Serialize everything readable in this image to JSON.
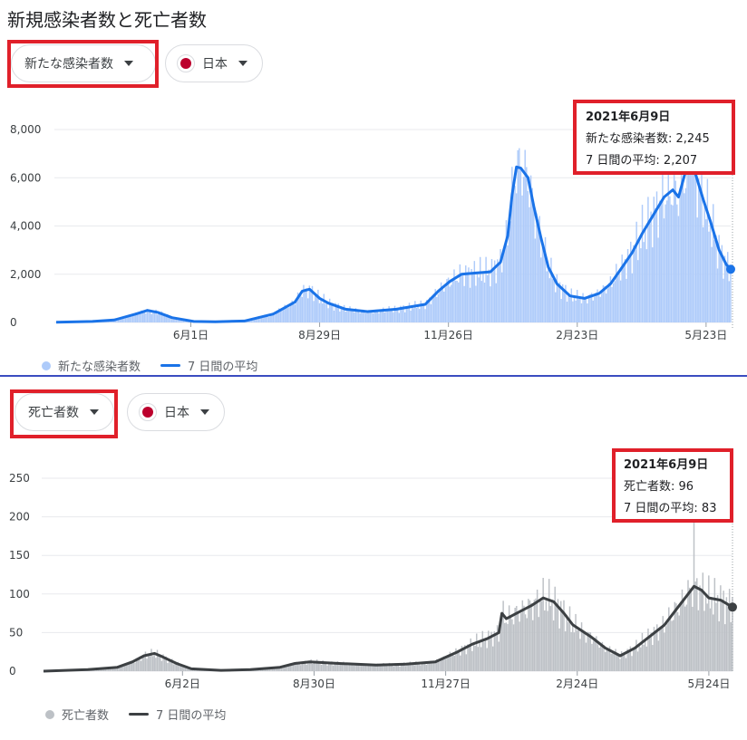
{
  "page_title": "新規感染者数と死亡者数",
  "charts": [
    {
      "metric_select": "新たな感染者数",
      "region_select": "日本",
      "tooltip": {
        "date": "2021年6月9日",
        "daily_label": "新たな感染者数",
        "daily_value": "2,245",
        "avg_label": "7 日間の平均",
        "avg_value": "2,207"
      },
      "legend": {
        "bars": "新たな感染者数",
        "line": "7 日間の平均"
      }
    },
    {
      "metric_select": "死亡者数",
      "region_select": "日本",
      "tooltip": {
        "date": "2021年6月9日",
        "daily_label": "死亡者数",
        "daily_value": "96",
        "avg_label": "7 日間の平均",
        "avg_value": "83"
      },
      "legend": {
        "bars": "死亡者数",
        "line": "7 日間の平均"
      }
    }
  ],
  "chart_data": [
    {
      "type": "bar",
      "colors": {
        "bars": "#aecbfa",
        "line": "#1a73e8"
      },
      "ylim": [
        0,
        8000
      ],
      "yticks": [
        0,
        2000,
        4000,
        6000,
        8000
      ],
      "ytick_labels": [
        "0",
        "2,000",
        "4,000",
        "6,000",
        "8,000"
      ],
      "xtick_labels": [
        "6月1日",
        "8月29日",
        "11月26日",
        "2月23日",
        "5月23日"
      ],
      "xtick_days": [
        93,
        182,
        271,
        360,
        449
      ],
      "grid": true,
      "legend_position": "bottom-left",
      "x_days_range": [
        0,
        466
      ],
      "series": [
        {
          "name": "7 日間の平均",
          "avg_points": [
            [
              0,
              10
            ],
            [
              25,
              40
            ],
            [
              40,
              100
            ],
            [
              55,
              350
            ],
            [
              63,
              500
            ],
            [
              70,
              420
            ],
            [
              80,
              200
            ],
            [
              95,
              40
            ],
            [
              110,
              30
            ],
            [
              130,
              60
            ],
            [
              150,
              350
            ],
            [
              165,
              850
            ],
            [
              170,
              1300
            ],
            [
              175,
              1380
            ],
            [
              182,
              1000
            ],
            [
              188,
              800
            ],
            [
              200,
              550
            ],
            [
              215,
              450
            ],
            [
              235,
              550
            ],
            [
              255,
              750
            ],
            [
              264,
              1300
            ],
            [
              272,
              1700
            ],
            [
              280,
              2000
            ],
            [
              290,
              2050
            ],
            [
              300,
              2100
            ],
            [
              307,
              2500
            ],
            [
              312,
              3600
            ],
            [
              315,
              5300
            ],
            [
              318,
              6450
            ],
            [
              321,
              6400
            ],
            [
              326,
              6000
            ],
            [
              330,
              4800
            ],
            [
              335,
              3500
            ],
            [
              340,
              2300
            ],
            [
              346,
              1600
            ],
            [
              355,
              1100
            ],
            [
              365,
              1000
            ],
            [
              375,
              1200
            ],
            [
              383,
              1600
            ],
            [
              390,
              2200
            ],
            [
              398,
              2900
            ],
            [
              405,
              3700
            ],
            [
              413,
              4500
            ],
            [
              420,
              5200
            ],
            [
              426,
              5500
            ],
            [
              430,
              5200
            ],
            [
              435,
              6300
            ],
            [
              439,
              6500
            ],
            [
              442,
              6100
            ],
            [
              447,
              5100
            ],
            [
              452,
              4200
            ],
            [
              458,
              3000
            ],
            [
              463,
              2400
            ],
            [
              466,
              2207
            ]
          ]
        },
        {
          "name": "新たな感染者数",
          "peak_value": 7800,
          "last_value": 2245
        }
      ]
    },
    {
      "type": "bar",
      "colors": {
        "bars": "#bdc1c6",
        "line": "#3c4043"
      },
      "ylim": [
        0,
        250
      ],
      "yticks": [
        0,
        50,
        100,
        150,
        200,
        250
      ],
      "ytick_labels": [
        "0",
        "50",
        "100",
        "150",
        "200",
        "250"
      ],
      "xtick_labels": [
        "6月2日",
        "8月30日",
        "11月27日",
        "2月24日",
        "5月24日"
      ],
      "xtick_days": [
        94,
        183,
        272,
        361,
        450
      ],
      "grid": true,
      "legend_position": "bottom-left",
      "x_days_range": [
        0,
        466
      ],
      "series": [
        {
          "name": "7 日間の平均",
          "avg_points": [
            [
              0,
              0
            ],
            [
              30,
              2
            ],
            [
              50,
              5
            ],
            [
              60,
              12
            ],
            [
              68,
              20
            ],
            [
              75,
              23
            ],
            [
              80,
              19
            ],
            [
              90,
              10
            ],
            [
              100,
              3
            ],
            [
              120,
              1
            ],
            [
              140,
              2
            ],
            [
              160,
              5
            ],
            [
              170,
              10
            ],
            [
              180,
              12
            ],
            [
              200,
              10
            ],
            [
              225,
              8
            ],
            [
              245,
              9
            ],
            [
              265,
              12
            ],
            [
              280,
              25
            ],
            [
              290,
              35
            ],
            [
              300,
              42
            ],
            [
              308,
              50
            ],
            [
              310,
              75
            ],
            [
              313,
              68
            ],
            [
              320,
              75
            ],
            [
              330,
              85
            ],
            [
              338,
              95
            ],
            [
              345,
              90
            ],
            [
              352,
              75
            ],
            [
              358,
              60
            ],
            [
              370,
              45
            ],
            [
              380,
              30
            ],
            [
              390,
              20
            ],
            [
              400,
              30
            ],
            [
              410,
              45
            ],
            [
              420,
              60
            ],
            [
              428,
              80
            ],
            [
              436,
              100
            ],
            [
              440,
              110
            ],
            [
              445,
              105
            ],
            [
              450,
              95
            ],
            [
              458,
              92
            ],
            [
              466,
              83
            ]
          ]
        },
        {
          "name": "死亡者数",
          "peak_value": 246,
          "last_value": 96
        }
      ]
    }
  ]
}
